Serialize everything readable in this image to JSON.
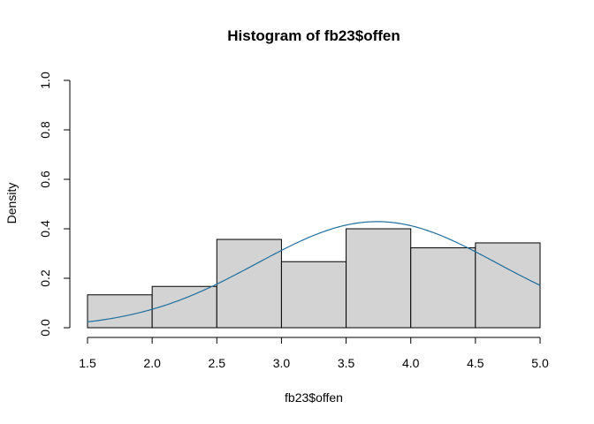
{
  "chart_data": {
    "type": "bar",
    "title": "Histogram of fb23$offen",
    "xlabel": "fb23$offen",
    "ylabel": "Density",
    "bins": [
      {
        "start": 1.5,
        "end": 2.0,
        "density": 0.133
      },
      {
        "start": 2.0,
        "end": 2.5,
        "density": 0.167
      },
      {
        "start": 2.5,
        "end": 3.0,
        "density": 0.357
      },
      {
        "start": 3.0,
        "end": 3.5,
        "density": 0.267
      },
      {
        "start": 3.5,
        "end": 4.0,
        "density": 0.4
      },
      {
        "start": 4.0,
        "end": 4.5,
        "density": 0.323
      },
      {
        "start": 4.5,
        "end": 5.0,
        "density": 0.343
      }
    ],
    "xlim": [
      1.5,
      5.0
    ],
    "ylim": [
      0,
      1.0
    ],
    "x_ticks": [
      "1.5",
      "2.0",
      "2.5",
      "3.0",
      "3.5",
      "4.0",
      "4.5",
      "5.0"
    ],
    "y_ticks": [
      "0.0",
      "0.2",
      "0.4",
      "0.6",
      "0.8",
      "1.0"
    ],
    "normal_curve": {
      "mean": 3.74,
      "sd": 0.93,
      "color": "#1f6f9f"
    },
    "bar_color": "#d3d3d3",
    "grid": false,
    "legend": "none"
  }
}
